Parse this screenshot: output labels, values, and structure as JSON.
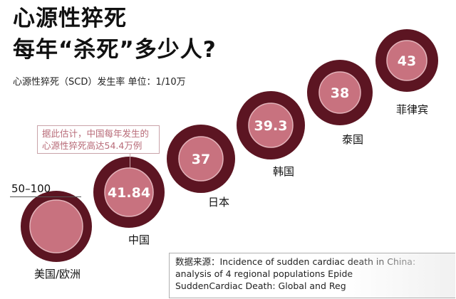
{
  "header": {
    "title_line1": "心源性猝死",
    "title_line2": "每年“杀死”多少人?",
    "subtitle": "心源性猝死（SCD）发生率   单位：1/10万"
  },
  "callout": {
    "line1": "据此估计，中国每年发生的",
    "line2": "心源性猝死高达54.4万例"
  },
  "chart_data": {
    "type": "bubble",
    "title": "心源性猝死 每年“杀死”多少人?",
    "unit": "1/10万",
    "categories": [
      "美国/欧洲",
      "中国",
      "日本",
      "韩国",
      "泰国",
      "菲律宾"
    ],
    "values": [
      null,
      41.84,
      37,
      39.3,
      38,
      43
    ],
    "value_labels": [
      "50–100",
      "41.84",
      "37",
      "39.3",
      "38",
      "43"
    ],
    "range_for_first": [
      50,
      100
    ]
  },
  "labels": {
    "range": "50–100"
  },
  "colors": {
    "ring": "#5c1522",
    "inner": "#c8727f",
    "callout_text": "#b86b78"
  },
  "source": {
    "line1": "数据来源：Incidence of sudden cardiac death in China:",
    "line2": "analysis of 4 regional populations Epide",
    "line3": "SuddenCardiac Death: Global and Reg"
  }
}
